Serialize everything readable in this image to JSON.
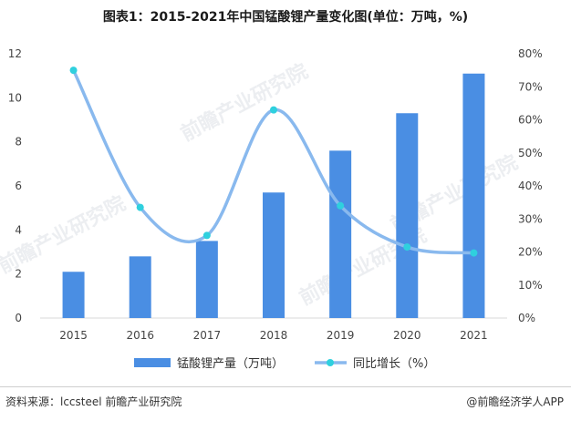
{
  "title": "图表1：2015-2021年中国锰酸锂产量变化图(单位：万吨，%)",
  "source_left": "资料来源：lccsteel 前瞻产业研究院",
  "source_right": "@前瞻经济学人APP",
  "watermark": "前瞻产业研究院",
  "colors": {
    "bar": "#4a8ee3",
    "line": "#89b9ee",
    "marker": "#2fd0de"
  },
  "chart_data": {
    "type": "bar",
    "categories": [
      "2015",
      "2016",
      "2017",
      "2018",
      "2019",
      "2020",
      "2021"
    ],
    "series": [
      {
        "name": "锰酸锂产量（万吨）",
        "type": "bar",
        "axis": "left",
        "values": [
          2.1,
          2.8,
          3.5,
          5.7,
          7.6,
          9.3,
          11.1
        ]
      },
      {
        "name": "同比增长（%）",
        "type": "line",
        "axis": "right",
        "values": [
          75,
          33.5,
          25,
          63,
          34,
          21.5,
          19.7
        ]
      }
    ],
    "y_left": {
      "min": 0,
      "max": 12,
      "ticks": [
        "0",
        "2",
        "4",
        "6",
        "8",
        "10",
        "12"
      ]
    },
    "y_right": {
      "min": 0,
      "max": 80,
      "ticks": [
        "0%",
        "10%",
        "20%",
        "30%",
        "40%",
        "50%",
        "60%",
        "70%",
        "80%"
      ]
    },
    "grid": false,
    "legend": "bottom"
  }
}
